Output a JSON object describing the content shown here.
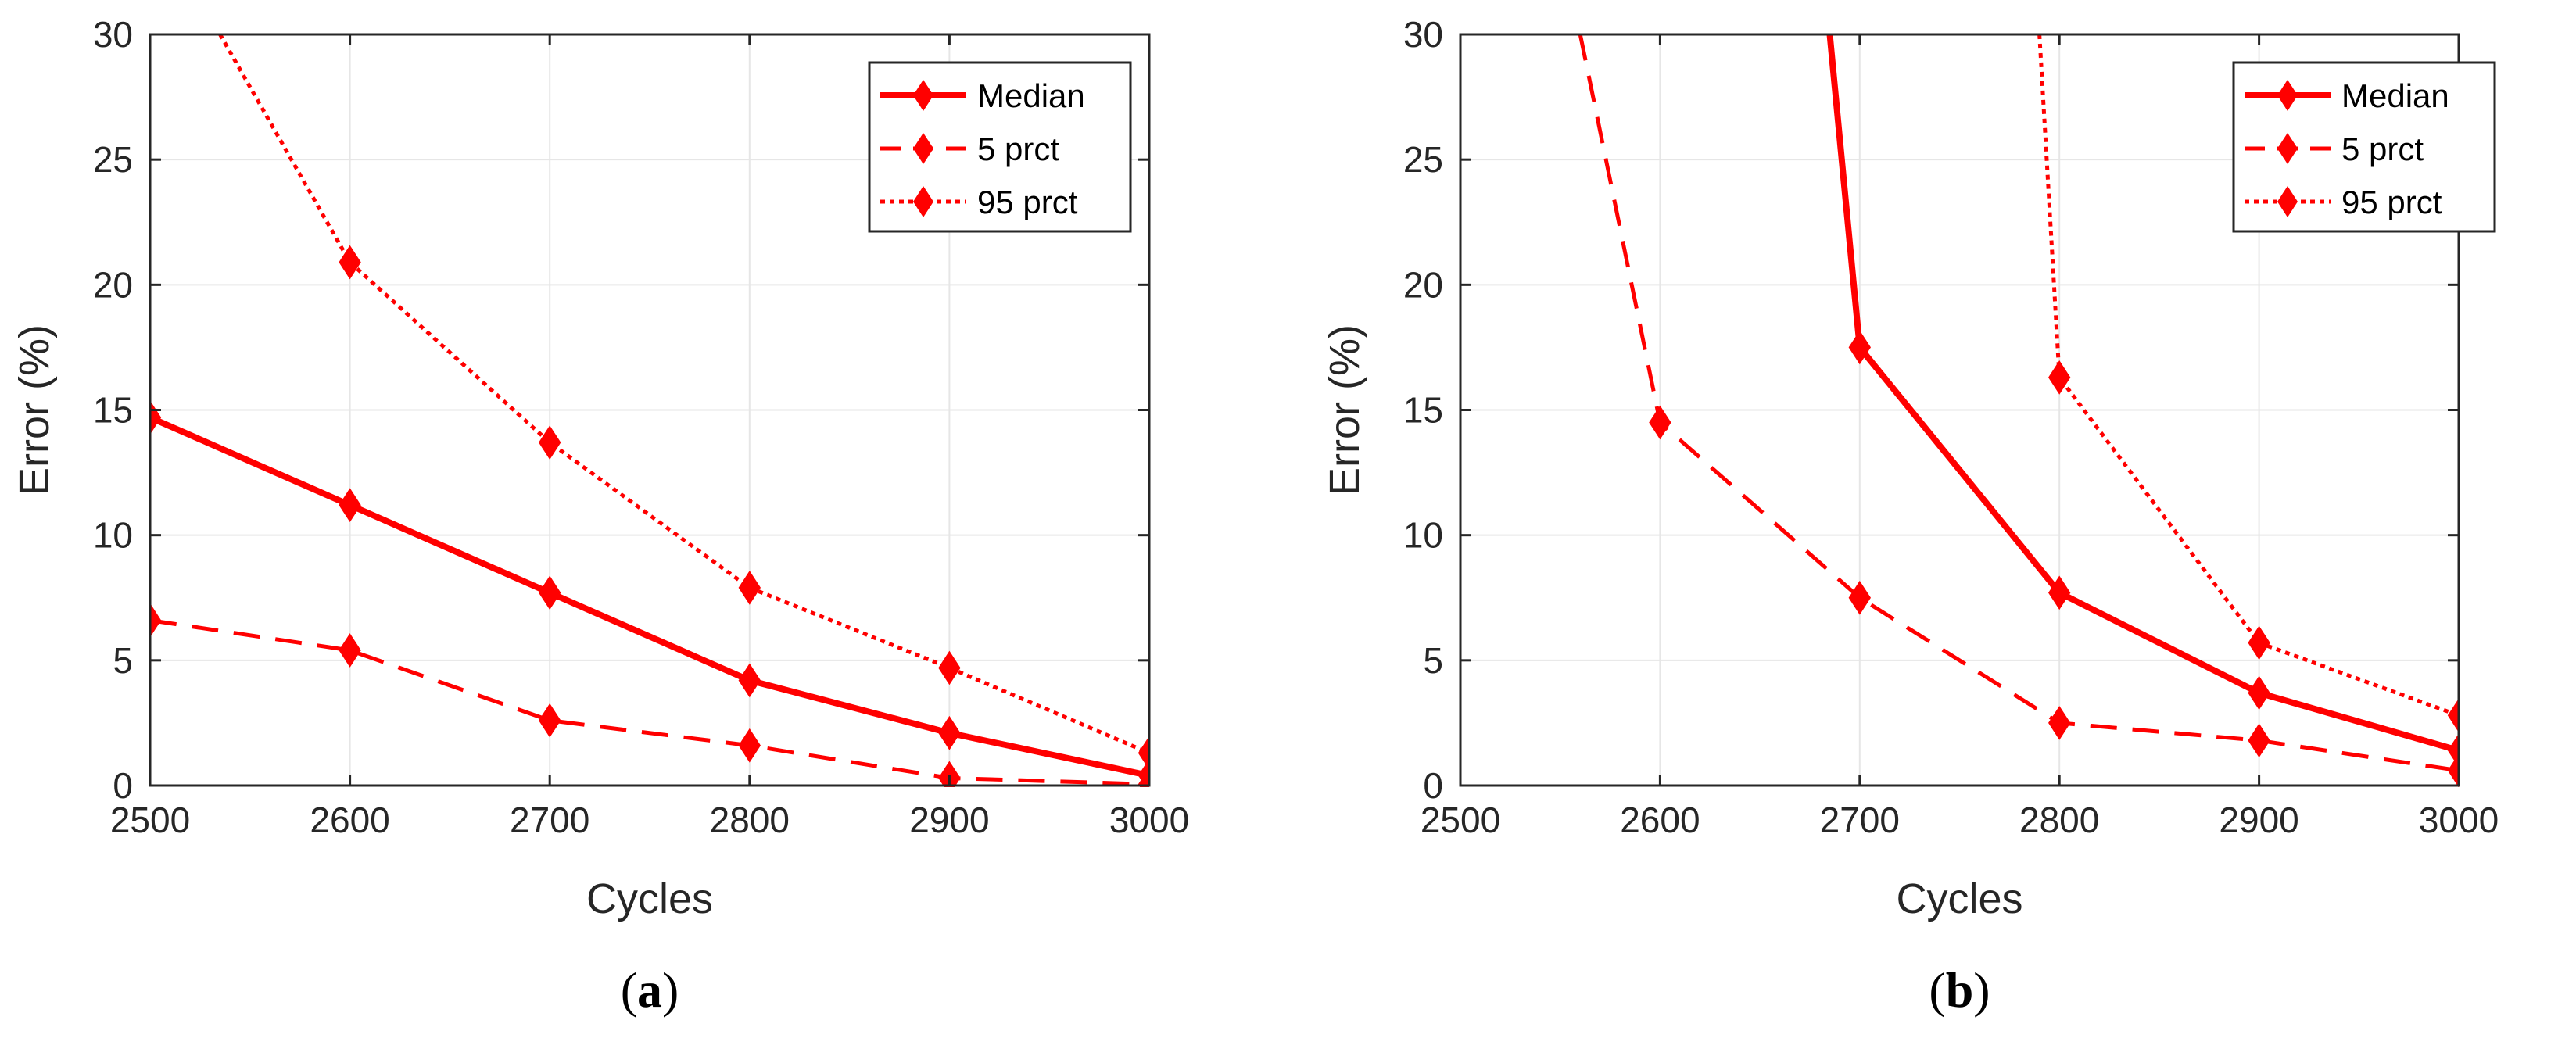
{
  "chart_data": [
    {
      "type": "line",
      "caption": "a",
      "xlabel": "Cycles",
      "ylabel": "Error (%)",
      "xlim": [
        2500,
        3000
      ],
      "ylim": [
        0,
        30
      ],
      "xticks": [
        2500,
        2600,
        2700,
        2800,
        2900,
        3000
      ],
      "yticks": [
        0,
        5,
        10,
        15,
        20,
        25,
        30
      ],
      "grid": true,
      "legend_position": "top-right",
      "series": [
        {
          "name": "Median",
          "style": "solid",
          "x": [
            2500,
            2600,
            2700,
            2800,
            2900,
            3000
          ],
          "y": [
            14.7,
            11.2,
            7.7,
            4.2,
            2.1,
            0.4
          ]
        },
        {
          "name": "5 prct",
          "style": "dashed",
          "x": [
            2500,
            2600,
            2700,
            2800,
            2900,
            3000
          ],
          "y": [
            6.6,
            5.4,
            2.6,
            1.6,
            0.3,
            0.05
          ]
        },
        {
          "name": "95 prct",
          "style": "dotted",
          "x": [
            2535,
            2600,
            2700,
            2800,
            2900,
            3000
          ],
          "y": [
            30,
            20.9,
            13.7,
            7.9,
            4.7,
            1.3
          ]
        }
      ]
    },
    {
      "type": "line",
      "caption": "b",
      "xlabel": "Cycles",
      "ylabel": "Error (%)",
      "xlim": [
        2500,
        3000
      ],
      "ylim": [
        0,
        30
      ],
      "xticks": [
        2500,
        2600,
        2700,
        2800,
        2900,
        3000
      ],
      "yticks": [
        0,
        5,
        10,
        15,
        20,
        25,
        30
      ],
      "grid": true,
      "legend_position": "top-right",
      "series": [
        {
          "name": "Median",
          "style": "solid",
          "x": [
            2685,
            2700,
            2800,
            2900,
            3000
          ],
          "y": [
            30,
            17.5,
            7.7,
            3.7,
            1.4
          ]
        },
        {
          "name": "5 prct",
          "style": "dashed",
          "x": [
            2560,
            2600,
            2700,
            2800,
            2900,
            3000
          ],
          "y": [
            30,
            14.5,
            7.5,
            2.5,
            1.8,
            0.6
          ]
        },
        {
          "name": "95 prct",
          "style": "dotted",
          "x": [
            2790,
            2800,
            2900,
            3000
          ],
          "y": [
            30,
            16.3,
            5.7,
            2.8
          ]
        }
      ]
    }
  ],
  "colors": {
    "series": "#ff0000",
    "axis": "#262626",
    "grid": "#e6e6e6"
  }
}
